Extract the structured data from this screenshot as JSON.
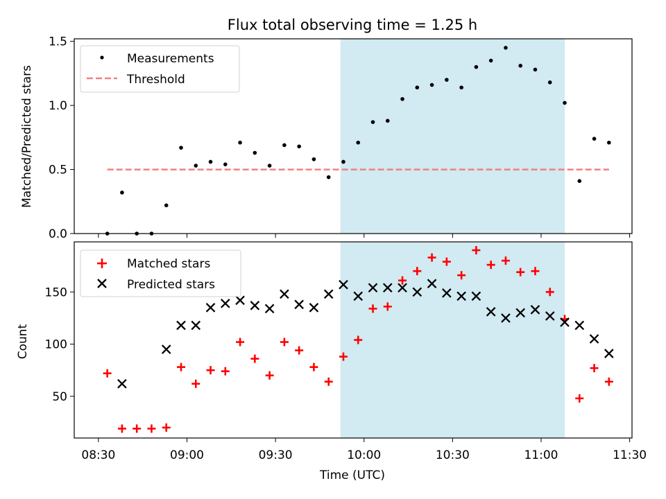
{
  "chart_data": {
    "title": "Flux total observing time = 1.25 h",
    "xlabel": "Time (UTC)",
    "x_ticks": [
      "08:30",
      "09:00",
      "09:30",
      "10:00",
      "10:30",
      "11:00",
      "11:30"
    ],
    "x_range": [
      "08:30",
      "11:30"
    ],
    "shaded_interval": {
      "start": "09:52",
      "end": "11:08",
      "color": "#add8e6"
    },
    "time": [
      "08:33",
      "08:38",
      "08:43",
      "08:48",
      "08:53",
      "08:58",
      "09:03",
      "09:08",
      "09:13",
      "09:18",
      "09:23",
      "09:28",
      "09:33",
      "09:38",
      "09:43",
      "09:48",
      "09:53",
      "09:58",
      "10:03",
      "10:08",
      "10:13",
      "10:18",
      "10:23",
      "10:28",
      "10:33",
      "10:38",
      "10:43",
      "10:48",
      "10:53",
      "10:58",
      "11:03",
      "11:08",
      "11:13",
      "11:18",
      "11:23"
    ],
    "panels": [
      {
        "type": "scatter",
        "ylabel": "Matched/Predicted stars",
        "ylim": [
          0,
          1.52
        ],
        "y_ticks": [
          "0.0",
          "0.5",
          "1.0",
          "1.5"
        ],
        "legend_position": "upper-left",
        "series": [
          {
            "name": "Measurements",
            "marker": "dot",
            "color": "#000000",
            "values": [
              0.0,
              0.32,
              0.0,
              0.0,
              0.22,
              0.67,
              0.53,
              0.56,
              0.54,
              0.71,
              0.63,
              0.53,
              0.69,
              0.68,
              0.58,
              0.44,
              0.56,
              0.71,
              0.87,
              0.88,
              1.05,
              1.14,
              1.16,
              1.2,
              1.14,
              1.3,
              1.35,
              1.45,
              1.31,
              1.28,
              1.18,
              1.02,
              0.41,
              0.74,
              0.71
            ]
          },
          {
            "name": "Threshold",
            "marker": "dashed-line",
            "color": "#f08080",
            "x": [
              "08:33",
              "11:23"
            ],
            "values": [
              0.5,
              0.5
            ]
          }
        ]
      },
      {
        "type": "scatter",
        "ylabel": "Count",
        "ylim": [
          10,
          198
        ],
        "y_ticks": [
          "50",
          "100",
          "150"
        ],
        "legend_position": "upper-left",
        "series": [
          {
            "name": "Matched stars",
            "marker": "plus",
            "color": "#ff0000",
            "values": [
              72,
              19,
              19,
              19,
              20,
              78,
              62,
              75,
              74,
              102,
              86,
              70,
              102,
              94,
              78,
              64,
              88,
              104,
              134,
              136,
              161,
              170,
              183,
              179,
              166,
              190,
              176,
              180,
              169,
              170,
              150,
              124,
              48,
              77,
              64
            ]
          },
          {
            "name": "Predicted stars",
            "marker": "x",
            "color": "#000000",
            "values": [
              null,
              62,
              null,
              null,
              95,
              118,
              118,
              135,
              139,
              142,
              137,
              134,
              148,
              138,
              135,
              148,
              157,
              146,
              154,
              154,
              154,
              150,
              158,
              149,
              146,
              146,
              131,
              125,
              130,
              133,
              127,
              121,
              118,
              105,
              91
            ]
          }
        ]
      }
    ]
  }
}
